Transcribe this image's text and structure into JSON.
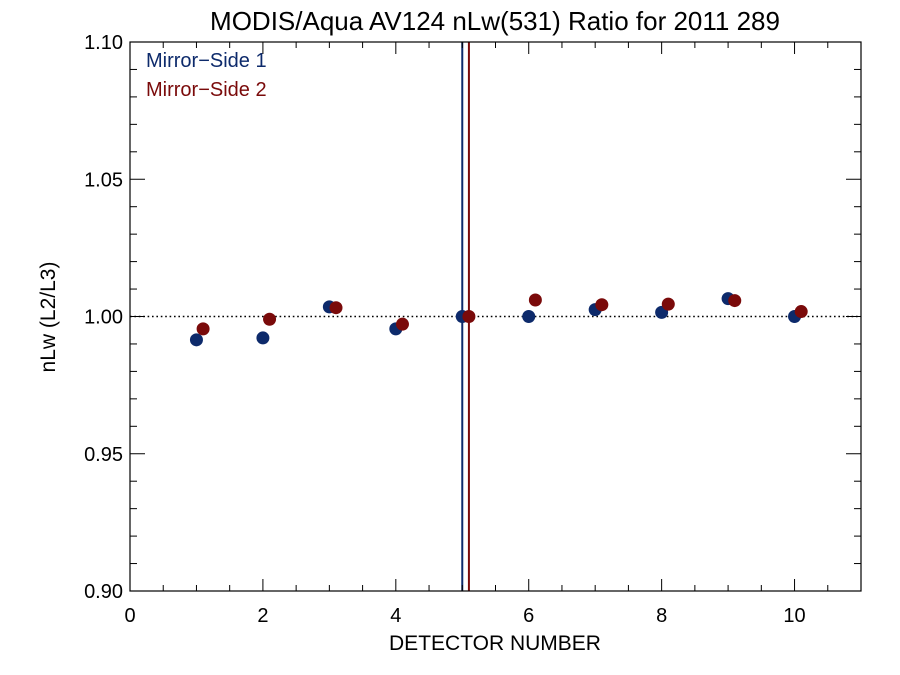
{
  "chart_data": {
    "type": "scatter",
    "title": "MODIS/Aqua AV124 nLw(531) Ratio for 2011 289",
    "xlabel": "DETECTOR NUMBER",
    "ylabel": "nLw (L2/L3)",
    "xlim": [
      0,
      11
    ],
    "ylim": [
      0.9,
      1.1
    ],
    "xticks": [
      0,
      2,
      4,
      6,
      8,
      10
    ],
    "yticks": [
      0.9,
      0.95,
      1.0,
      1.05,
      1.1
    ],
    "xtick_labels": [
      "0",
      "2",
      "4",
      "6",
      "8",
      "10"
    ],
    "ytick_labels": [
      "0.90",
      "0.95",
      "1.00",
      "1.05",
      "1.10"
    ],
    "reference_line_y": 1.0,
    "vertical_lines": [
      {
        "x": 5.0,
        "color": "#0d2a6b"
      },
      {
        "x": 5.1,
        "color": "#7a0a0a"
      }
    ],
    "legend_position": "top-left",
    "grid": false,
    "series": [
      {
        "name": "Mirror−Side 1",
        "color": "#0d2a6b",
        "x": [
          1,
          2,
          3,
          4,
          5,
          6,
          7,
          8,
          9,
          10
        ],
        "y": [
          0.9915,
          0.9922,
          1.0035,
          0.9955,
          1.0,
          1.0,
          1.0025,
          1.0015,
          1.0065,
          1.0
        ]
      },
      {
        "name": "Mirror−Side 2",
        "color": "#7a0a0a",
        "x": [
          1.1,
          2.1,
          3.1,
          4.1,
          5.1,
          6.1,
          7.1,
          8.1,
          9.1,
          10.1
        ],
        "y": [
          0.9955,
          0.999,
          1.0032,
          0.9972,
          1.0,
          1.006,
          1.0043,
          1.0045,
          1.0058,
          1.0018
        ]
      }
    ]
  }
}
